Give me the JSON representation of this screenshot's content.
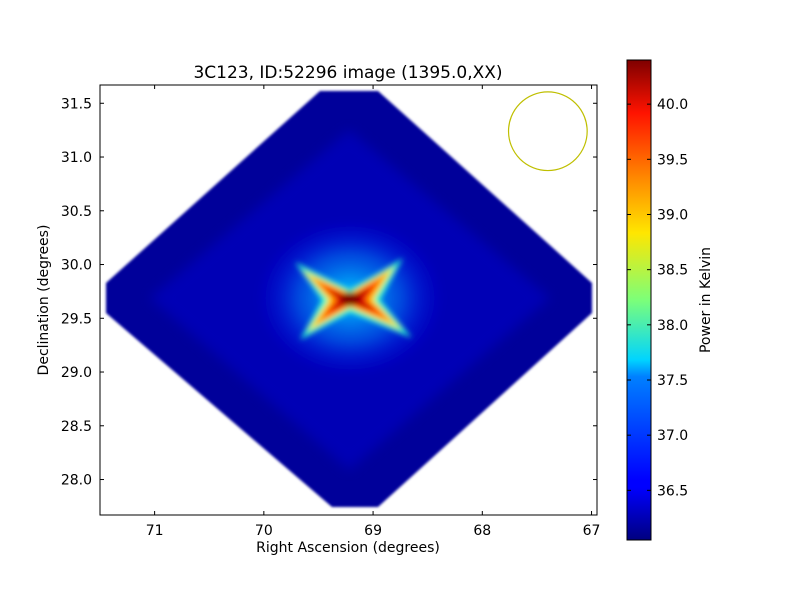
{
  "chart_data": {
    "type": "heatmap",
    "title": "3C123, ID:52296 image (1395.0,XX)",
    "xlabel": "Right Ascension (degrees)",
    "ylabel": "Declination (degrees)",
    "xlim": [
      71.5,
      66.95
    ],
    "ylim": [
      27.67,
      31.67
    ],
    "x_ticks": [
      71,
      70,
      69,
      68,
      67
    ],
    "y_ticks": [
      28.0,
      28.5,
      29.0,
      29.5,
      30.0,
      30.5,
      31.0,
      31.5
    ],
    "x_tick_labels": [
      "71",
      "70",
      "69",
      "68",
      "67"
    ],
    "y_tick_labels": [
      "28.0",
      "28.5",
      "29.0",
      "29.5",
      "30.0",
      "30.5",
      "31.0",
      "31.5"
    ],
    "colorbar": {
      "label": "Power in Kelvin",
      "range": [
        36.05,
        40.4
      ],
      "ticks": [
        36.5,
        37.0,
        37.5,
        38.0,
        38.5,
        39.0,
        39.5,
        40.0
      ],
      "tick_labels": [
        "36.5",
        "37.0",
        "37.5",
        "38.0",
        "38.5",
        "39.0",
        "39.5",
        "40.0"
      ],
      "colormap": "jet"
    },
    "image": {
      "footprint_corners_ra_dec": [
        [
          69.27,
          31.67
        ],
        [
          66.97,
          29.65
        ],
        [
          69.27,
          27.7
        ],
        [
          71.48,
          29.65
        ]
      ],
      "background_level": 36.2,
      "source_peak": {
        "ra": 69.27,
        "dec": 29.67,
        "value": 40.4
      }
    },
    "beam_circle": {
      "ra": 67.4,
      "dec": 31.24,
      "radius_deg": 0.36,
      "color": "#bfbf00"
    }
  }
}
